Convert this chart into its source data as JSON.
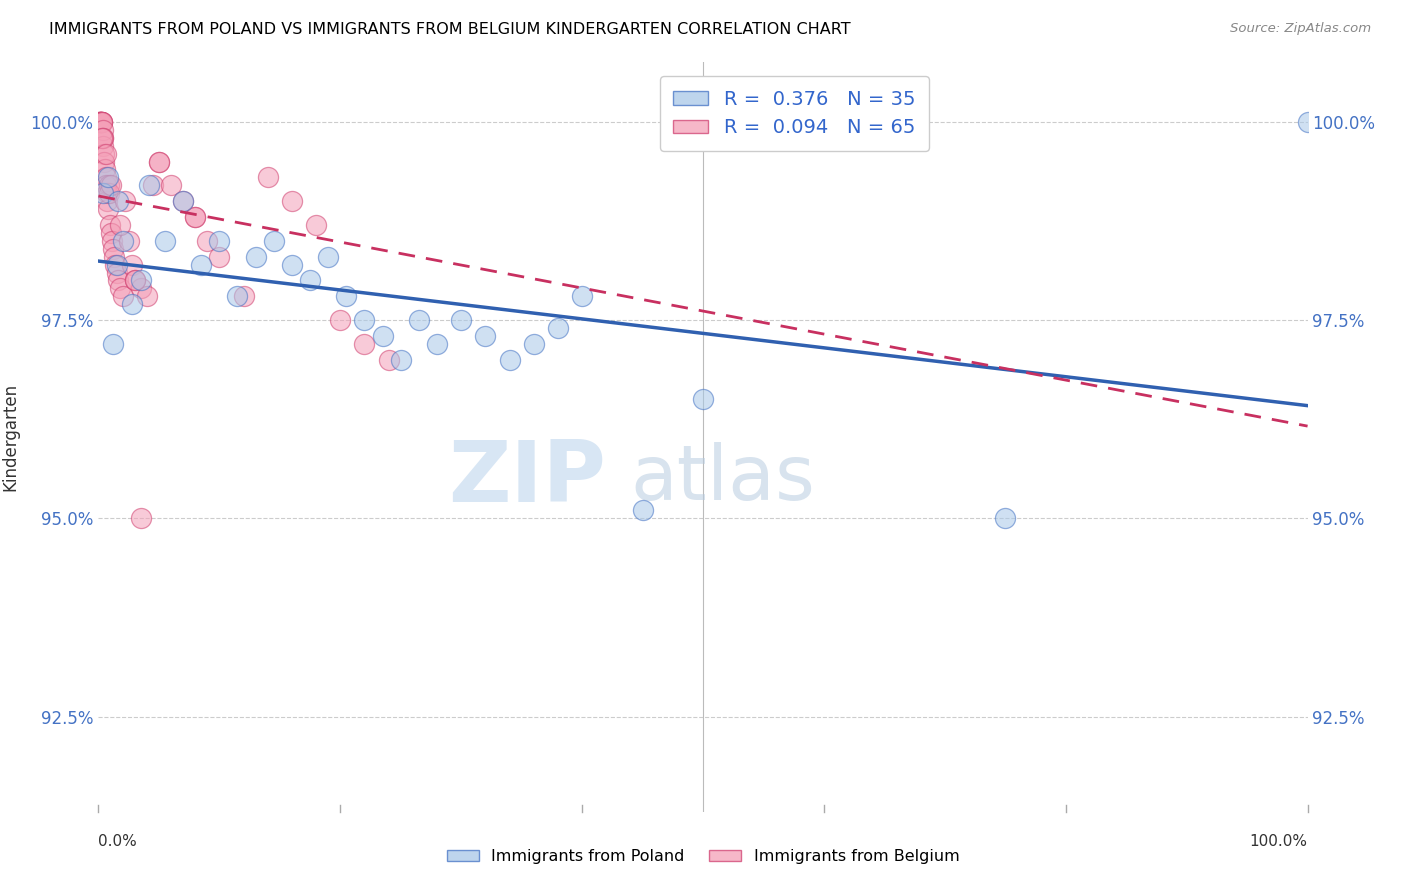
{
  "title": "IMMIGRANTS FROM POLAND VS IMMIGRANTS FROM BELGIUM KINDERGARTEN CORRELATION CHART",
  "source": "Source: ZipAtlas.com",
  "ylabel": "Kindergarten",
  "yticks": [
    92.5,
    95.0,
    97.5,
    100.0
  ],
  "ytick_labels": [
    "92.5%",
    "95.0%",
    "97.5%",
    "100.0%"
  ],
  "xmin": 0.0,
  "xmax": 100.0,
  "ymin": 91.3,
  "ymax": 100.75,
  "poland_color": "#a8c8e8",
  "belgium_color": "#f4a0b8",
  "poland_edge_color": "#4472c4",
  "belgium_edge_color": "#d04070",
  "poland_line_color": "#3060b0",
  "belgium_line_color": "#c83060",
  "poland_scatter_x": [
    0.4,
    0.8,
    1.2,
    1.6,
    2.0,
    2.8,
    3.5,
    4.2,
    5.5,
    7.0,
    8.5,
    10.0,
    11.5,
    13.0,
    14.5,
    16.0,
    17.5,
    19.0,
    20.5,
    22.0,
    23.5,
    25.0,
    26.5,
    28.0,
    30.0,
    32.0,
    34.0,
    36.0,
    38.0,
    40.0,
    45.0,
    50.0,
    75.0,
    100.0,
    1.5
  ],
  "poland_scatter_y": [
    99.1,
    99.3,
    97.2,
    99.0,
    98.5,
    97.7,
    98.0,
    99.2,
    98.5,
    99.0,
    98.2,
    98.5,
    97.8,
    98.3,
    98.5,
    98.2,
    98.0,
    98.3,
    97.8,
    97.5,
    97.3,
    97.0,
    97.5,
    97.2,
    97.5,
    97.3,
    97.0,
    97.2,
    97.4,
    97.8,
    95.1,
    96.5,
    95.0,
    100.0,
    98.2
  ],
  "belgium_scatter_x": [
    0.05,
    0.08,
    0.1,
    0.12,
    0.15,
    0.18,
    0.2,
    0.22,
    0.25,
    0.28,
    0.3,
    0.32,
    0.35,
    0.38,
    0.4,
    0.42,
    0.45,
    0.5,
    0.55,
    0.6,
    0.65,
    0.7,
    0.75,
    0.8,
    0.85,
    0.9,
    0.95,
    1.0,
    1.1,
    1.2,
    1.3,
    1.4,
    1.5,
    1.6,
    1.8,
    2.0,
    2.2,
    2.5,
    2.8,
    3.0,
    3.5,
    4.0,
    4.5,
    5.0,
    6.0,
    7.0,
    8.0,
    9.0,
    10.0,
    12.0,
    14.0,
    16.0,
    18.0,
    20.0,
    22.0,
    24.0,
    0.3,
    0.6,
    1.0,
    1.8,
    3.0,
    5.0,
    8.0,
    50.0,
    3.5
  ],
  "belgium_scatter_y": [
    100.0,
    100.0,
    100.0,
    100.0,
    100.0,
    100.0,
    100.0,
    100.0,
    100.0,
    100.0,
    100.0,
    100.0,
    99.8,
    99.9,
    99.7,
    99.8,
    99.6,
    99.5,
    99.4,
    99.3,
    99.2,
    99.1,
    99.0,
    98.9,
    99.2,
    99.1,
    98.7,
    98.6,
    98.5,
    98.4,
    98.3,
    98.2,
    98.1,
    98.0,
    97.9,
    97.8,
    99.0,
    98.5,
    98.2,
    98.0,
    97.9,
    97.8,
    99.2,
    99.5,
    99.2,
    99.0,
    98.8,
    98.5,
    98.3,
    97.8,
    99.3,
    99.0,
    98.7,
    97.5,
    97.2,
    97.0,
    99.8,
    99.6,
    99.2,
    98.7,
    98.0,
    99.5,
    98.8,
    99.8,
    95.0
  ],
  "watermark_zip_color": "#c8dcf0",
  "watermark_atlas_color": "#b8cce0",
  "bottom_legend_poland": "Immigrants from Poland",
  "bottom_legend_belgium": "Immigrants from Belgium",
  "legend_R_poland": "0.376",
  "legend_N_poland": "35",
  "legend_R_belgium": "0.094",
  "legend_N_belgium": "65"
}
